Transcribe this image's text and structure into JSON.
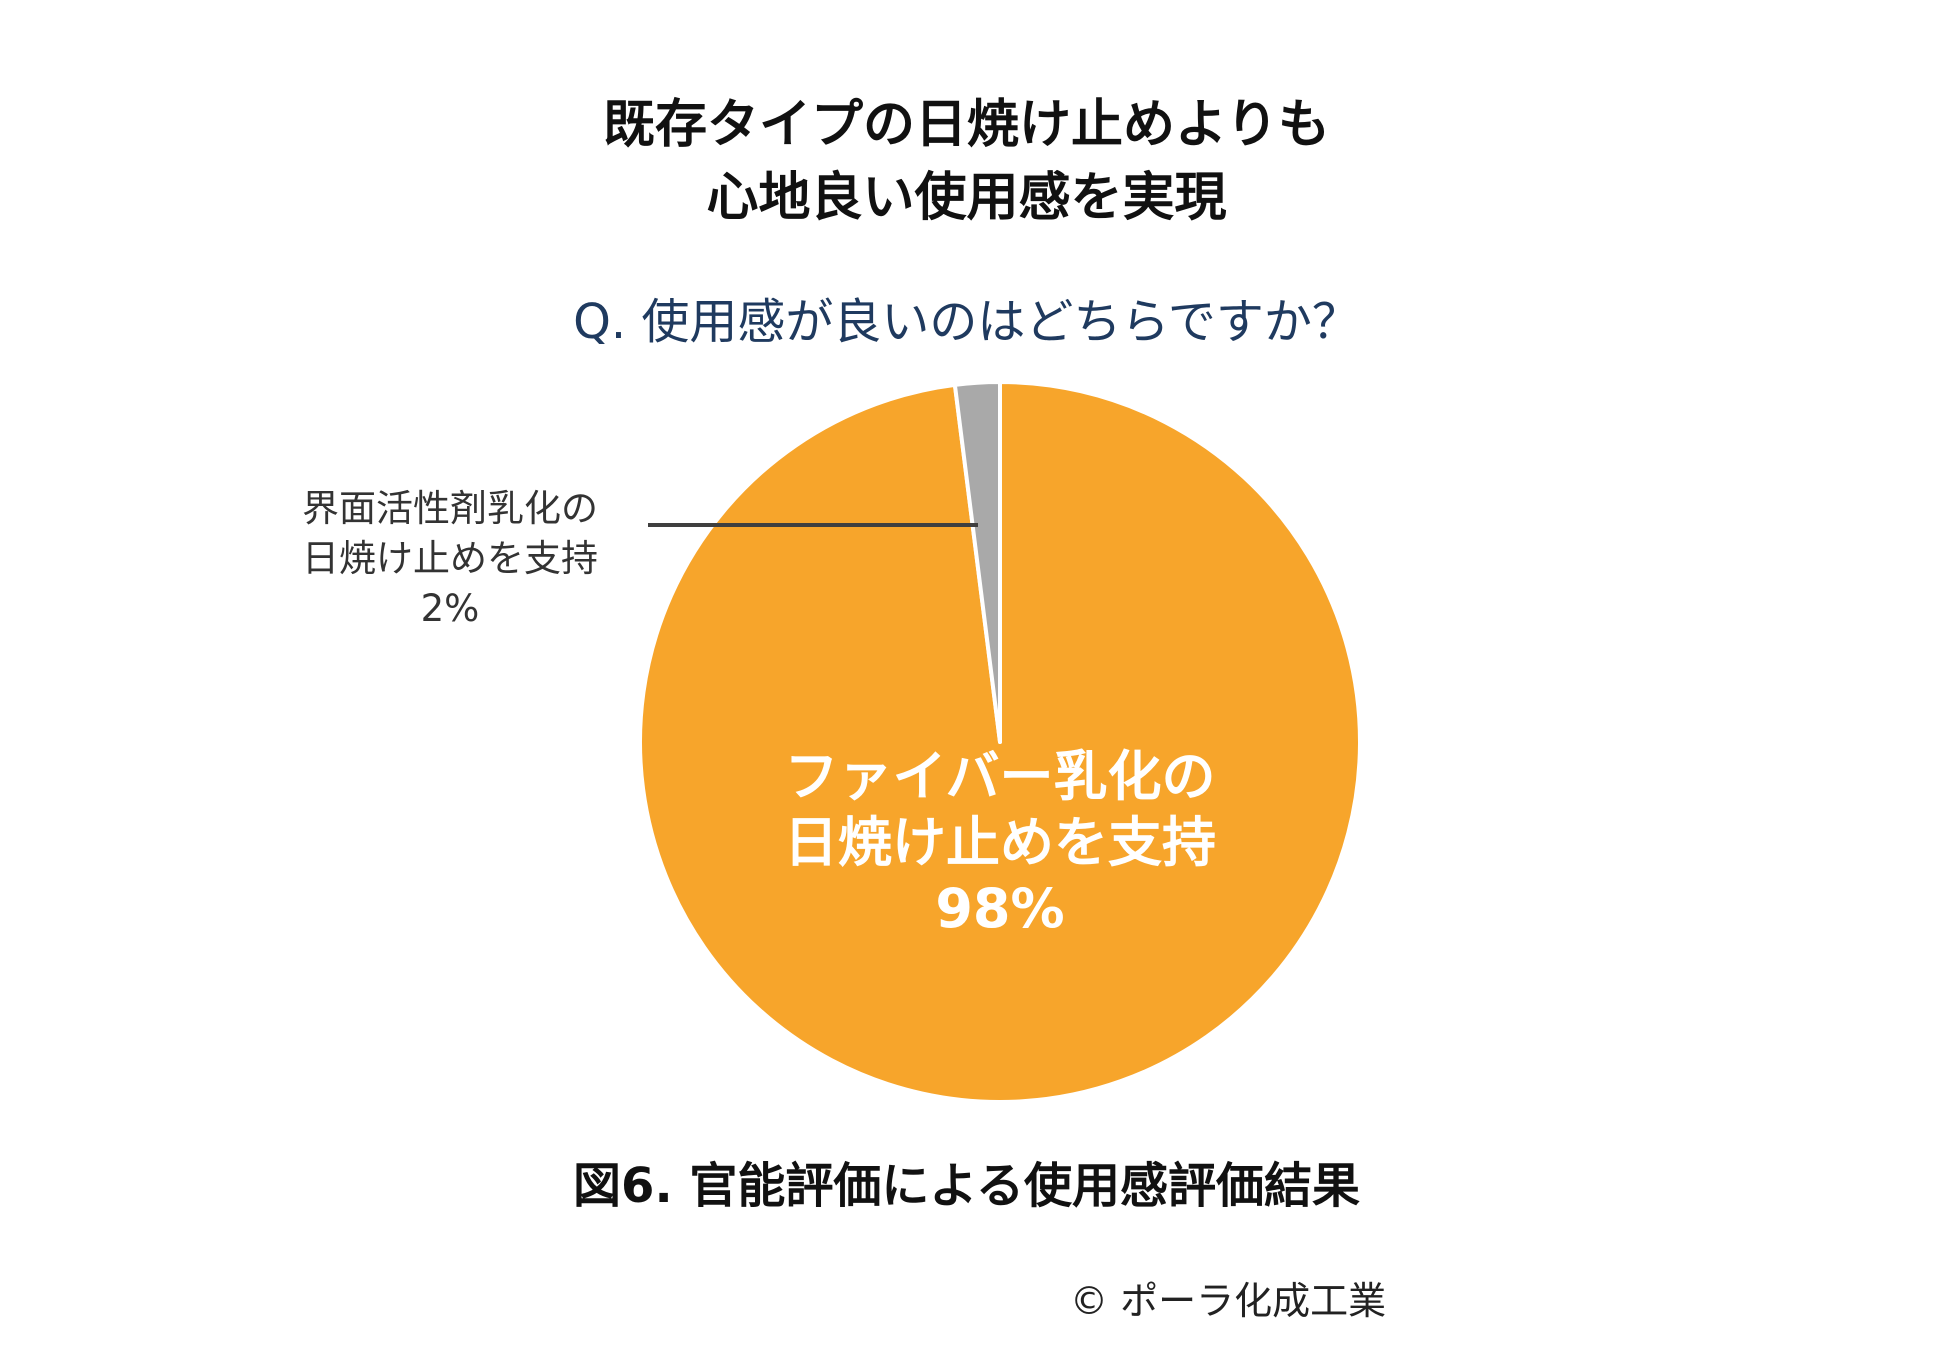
{
  "header": {
    "title_line1": "既存タイプの日焼け止めよりも",
    "title_line2": "心地良い使用感を実現",
    "question": "Q. 使用感が良いのはどちらですか？"
  },
  "chart_data": {
    "type": "pie",
    "slices": [
      {
        "label_lines": [
          "ファイバー乳化の",
          "日焼け止めを支持"
        ],
        "value": 98,
        "value_label": "98%",
        "color": "#F7A52B"
      },
      {
        "label_lines": [
          "界面活性剤乳化の",
          "日焼け止めを支持"
        ],
        "value": 2,
        "value_label": "2%",
        "color": "#A9A9A9"
      }
    ],
    "start_angle_deg": 0,
    "direction": "clockwise",
    "slice_border_color": "#FFFFFF",
    "leader_line_color": "#3F3F3F"
  },
  "footer": {
    "caption": "図6. 官能評価による使用感評価結果",
    "copyright": "© ポーラ化成工業"
  }
}
